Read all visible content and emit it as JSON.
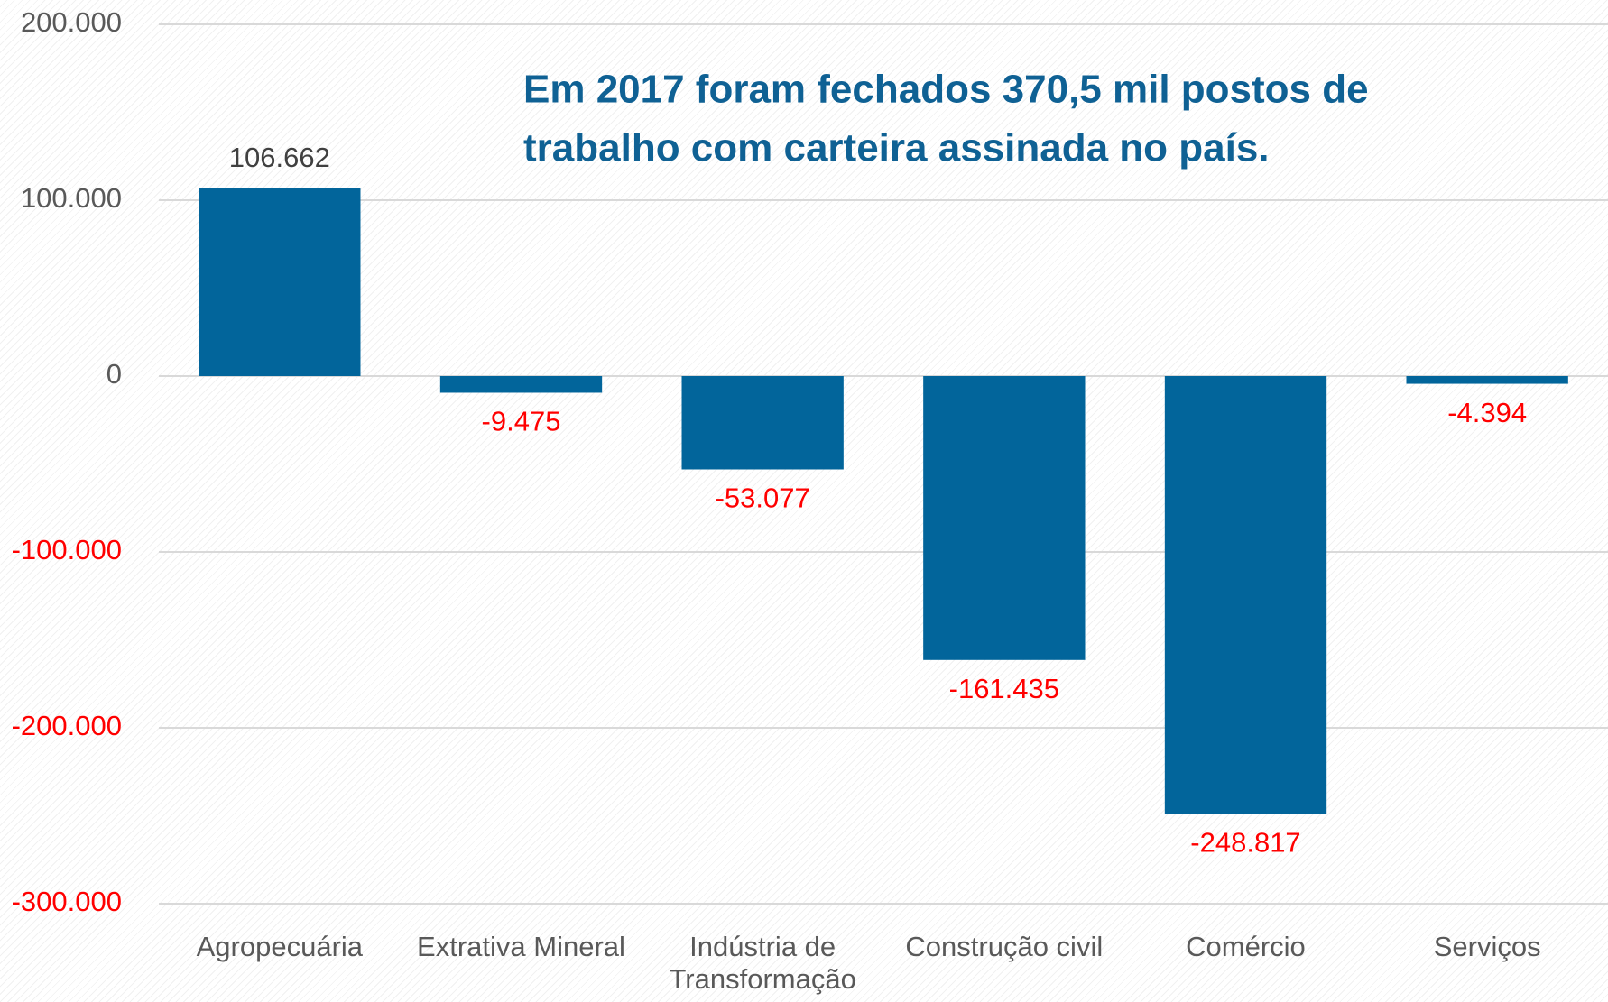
{
  "chart_data": {
    "type": "bar",
    "annotation": [
      "Em 2017 foram fechados 370,5 mil postos de",
      "trabalho com carteira assinada no país."
    ],
    "categories": [
      "Agropecuária",
      "Extrativa Mineral",
      "Indústria de Transformação",
      "Construção civil",
      "Comércio",
      "Serviços"
    ],
    "values": [
      106662,
      -9475,
      -53077,
      -161435,
      -248817,
      -4394
    ],
    "value_labels": [
      "106.662",
      "-9.475",
      "-53.077",
      "-161.435",
      "-248.817",
      "-4.394"
    ],
    "color": "#02659b",
    "ylim": [
      -300000,
      200000
    ],
    "yticks": [
      {
        "value": -300000,
        "label": "-300.000"
      },
      {
        "value": -200000,
        "label": "-200.000"
      },
      {
        "value": -100000,
        "label": "-100.000"
      },
      0,
      {
        "value": 100000,
        "label": "100.000"
      },
      {
        "value": 200000,
        "label": "200.000"
      }
    ],
    "grid": true
  }
}
